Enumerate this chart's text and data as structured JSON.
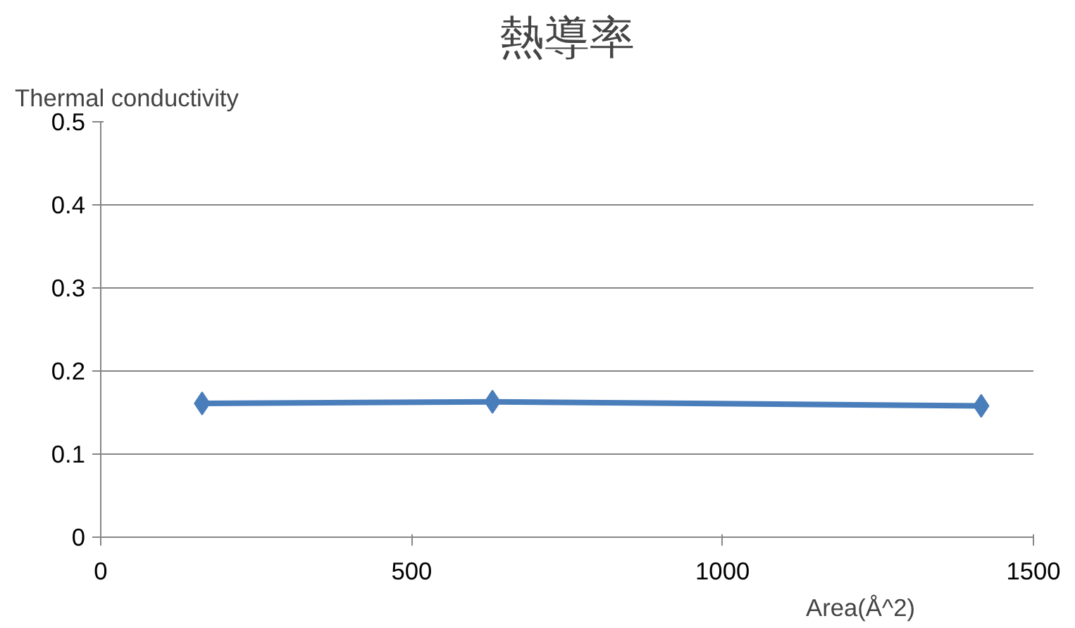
{
  "chart_data": {
    "type": "line",
    "title": "熱導率",
    "ylabel": "Thermal conductivity",
    "xlabel": "Area(Å^2)",
    "x": [
      163,
      630,
      1416
    ],
    "series": [
      {
        "color": "#4a7ebb",
        "values": [
          0.161,
          0.163,
          0.158
        ]
      }
    ],
    "xlim": [
      0,
      1500
    ],
    "xticks": [
      0,
      500,
      1000,
      1500
    ],
    "ylim": [
      0,
      0.5
    ],
    "yticks": [
      0,
      0.1,
      0.2,
      0.3,
      0.4,
      0.5
    ],
    "grid": "y",
    "marker": "diamond",
    "line_style": "solid"
  }
}
